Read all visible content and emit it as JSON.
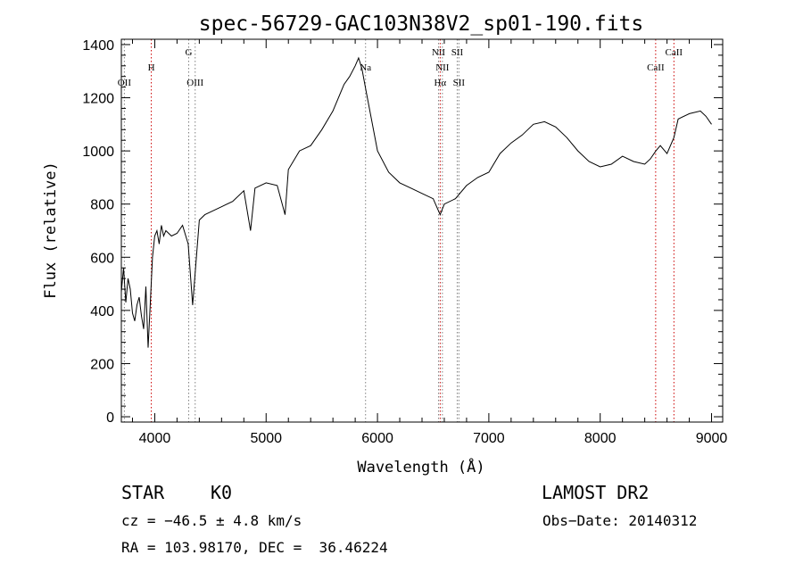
{
  "chart_data": {
    "type": "line",
    "title": "spec-56729-GAC103N38V2_sp01-190.fits",
    "xlabel": "Wavelength (Å)",
    "ylabel": "Flux (relative)",
    "xlim": [
      3700,
      9100
    ],
    "ylim": [
      -20,
      1420
    ],
    "x_ticks": [
      4000,
      5000,
      6000,
      7000,
      8000,
      9000
    ],
    "y_ticks": [
      0,
      200,
      400,
      600,
      800,
      1000,
      1200,
      1400
    ],
    "grid": false,
    "series": [
      {
        "x": [
          3700,
          3720,
          3740,
          3760,
          3780,
          3800,
          3820,
          3840,
          3860,
          3880,
          3900,
          3920,
          3940,
          3960,
          3980,
          4000,
          4020,
          4040,
          4060,
          4080,
          4100,
          4150,
          4200,
          4250,
          4300,
          4340,
          4400,
          4450,
          4500,
          4600,
          4700,
          4800,
          4860,
          4900,
          5000,
          5100,
          5170,
          5200,
          5300,
          5400,
          5500,
          5600,
          5700,
          5750,
          5800,
          5830,
          5860,
          5900,
          6000,
          6100,
          6200,
          6300,
          6400,
          6500,
          6563,
          6600,
          6700,
          6800,
          6900,
          7000,
          7100,
          7200,
          7300,
          7400,
          7500,
          7600,
          7700,
          7800,
          7900,
          8000,
          8100,
          8200,
          8300,
          8400,
          8450,
          8500,
          8540,
          8600,
          8662,
          8700,
          8800,
          8900,
          8950,
          9000
        ],
        "y": [
          470,
          560,
          430,
          520,
          480,
          390,
          360,
          420,
          450,
          380,
          330,
          490,
          260,
          430,
          600,
          680,
          700,
          650,
          720,
          680,
          700,
          680,
          690,
          720,
          650,
          420,
          740,
          760,
          770,
          790,
          810,
          850,
          700,
          860,
          880,
          870,
          760,
          930,
          1000,
          1020,
          1080,
          1150,
          1250,
          1280,
          1320,
          1350,
          1310,
          1220,
          1000,
          920,
          880,
          860,
          840,
          820,
          760,
          800,
          820,
          870,
          900,
          920,
          990,
          1030,
          1060,
          1100,
          1110,
          1090,
          1050,
          1000,
          960,
          940,
          950,
          980,
          960,
          950,
          970,
          1000,
          1020,
          990,
          1050,
          1120,
          1140,
          1150,
          1130,
          1100
        ]
      }
    ],
    "line_markers": [
      {
        "label": "OII",
        "wavelength": 3727,
        "color": "#808080",
        "row": 2
      },
      {
        "label": "H",
        "wavelength": 3969,
        "color": "#cc0000",
        "row": 1
      },
      {
        "label": "G",
        "wavelength": 4305,
        "color": "#808080",
        "row": 0
      },
      {
        "label": "OIII",
        "wavelength": 4363,
        "color": "#808080",
        "row": 2
      },
      {
        "label": "Na",
        "wavelength": 5893,
        "color": "#808080",
        "row": 1
      },
      {
        "label": "NII",
        "wavelength": 6548,
        "color": "#808080",
        "row": 0
      },
      {
        "label": "NII",
        "wavelength": 6583,
        "color": "#808080",
        "row": 1
      },
      {
        "label": "Hα",
        "wavelength": 6563,
        "color": "#cc0000",
        "row": 2
      },
      {
        "label": "SII",
        "wavelength": 6716,
        "color": "#808080",
        "row": 0
      },
      {
        "label": "SII",
        "wavelength": 6731,
        "color": "#808080",
        "row": 2
      },
      {
        "label": "CaII",
        "wavelength": 8498,
        "color": "#cc0000",
        "row": 1
      },
      {
        "label": "CaII",
        "wavelength": 8662,
        "color": "#cc0000",
        "row": 0
      }
    ]
  },
  "info": {
    "object_type": "STAR",
    "subclass": "K0",
    "release": "LAMOST DR2",
    "redshift": "cz = −46.5 ± 4.8 km/s",
    "obs_date": "Obs−Date: 20140312",
    "coords": "RA = 103.98170, DEC =  36.46224"
  }
}
